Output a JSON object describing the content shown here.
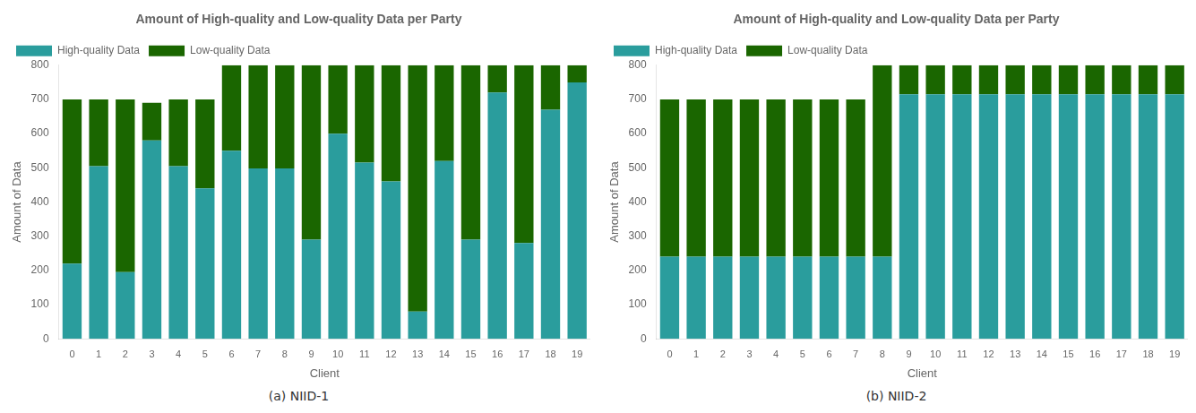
{
  "chart_data": [
    {
      "type": "bar",
      "stacked": true,
      "title": "Amount of High-quality and Low-quality Data per Party",
      "caption": "(a) NIID-1",
      "x_label": "Client",
      "y_label": "Amount of Data",
      "categories": [
        "0",
        "1",
        "2",
        "3",
        "4",
        "5",
        "6",
        "7",
        "8",
        "9",
        "10",
        "11",
        "12",
        "13",
        "14",
        "15",
        "16",
        "17",
        "18",
        "19"
      ],
      "series": [
        {
          "name": "High-quality Data",
          "color": "#2a9d9d",
          "values": [
            220,
            505,
            195,
            580,
            505,
            440,
            550,
            498,
            498,
            290,
            600,
            515,
            460,
            80,
            520,
            290,
            720,
            280,
            670,
            750
          ]
        },
        {
          "name": "Low-quality Data",
          "color": "#1a6600",
          "values": [
            480,
            195,
            505,
            110,
            195,
            260,
            250,
            302,
            302,
            510,
            200,
            285,
            340,
            720,
            280,
            510,
            80,
            520,
            130,
            50
          ]
        }
      ],
      "ylim": [
        0,
        800
      ],
      "yticks": [
        0,
        100,
        200,
        300,
        400,
        500,
        600,
        700,
        800
      ],
      "grid": false,
      "legend": "upper left"
    },
    {
      "type": "bar",
      "stacked": true,
      "title": "Amount of High-quality and Low-quality Data per Party",
      "caption": "(b) NIID-2",
      "x_label": "Client",
      "y_label": "Amount of Data",
      "categories": [
        "0",
        "1",
        "2",
        "3",
        "4",
        "5",
        "6",
        "7",
        "8",
        "9",
        "10",
        "11",
        "12",
        "13",
        "14",
        "15",
        "16",
        "17",
        "18",
        "19"
      ],
      "series": [
        {
          "name": "High-quality Data",
          "color": "#2a9d9d",
          "values": [
            240,
            240,
            240,
            240,
            240,
            240,
            240,
            240,
            240,
            715,
            715,
            715,
            715,
            715,
            715,
            715,
            715,
            715,
            715,
            715
          ]
        },
        {
          "name": "Low-quality Data",
          "color": "#1a6600",
          "values": [
            460,
            460,
            460,
            460,
            460,
            460,
            460,
            460,
            560,
            85,
            85,
            85,
            85,
            85,
            85,
            85,
            85,
            85,
            85,
            85
          ]
        }
      ],
      "ylim": [
        0,
        800
      ],
      "yticks": [
        0,
        100,
        200,
        300,
        400,
        500,
        600,
        700,
        800
      ],
      "grid": false,
      "legend": "upper left"
    }
  ]
}
